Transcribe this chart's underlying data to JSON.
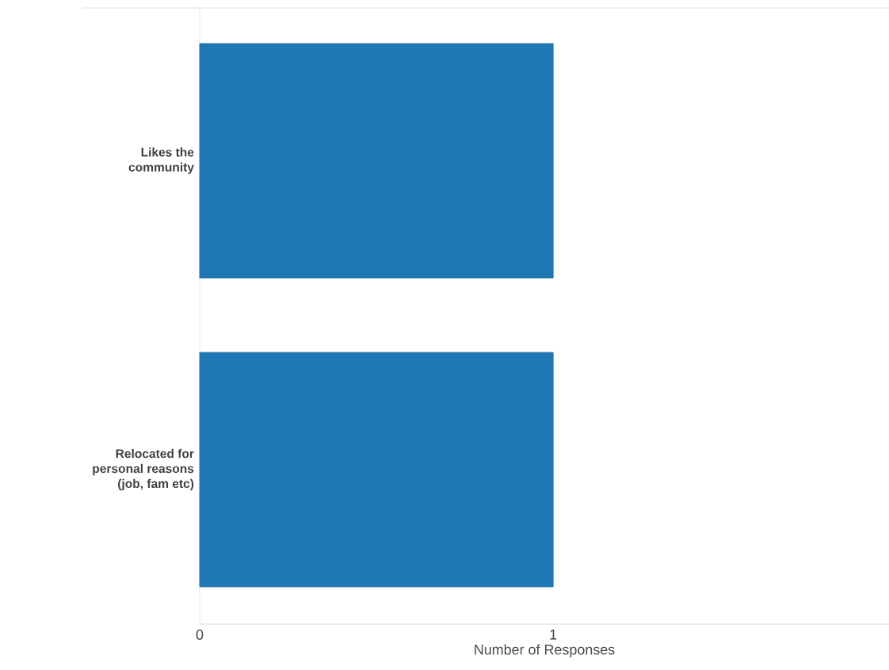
{
  "chart_data": {
    "type": "bar",
    "orientation": "horizontal",
    "xlabel": "Number of Responses",
    "categories": [
      "Likes the community",
      "Relocated for personal reasons (job, fam etc)"
    ],
    "values": [
      1,
      1
    ],
    "color": "#1f77b4",
    "xlim": [
      0,
      1.95
    ],
    "xticks": [
      0,
      1
    ],
    "grid": false
  }
}
